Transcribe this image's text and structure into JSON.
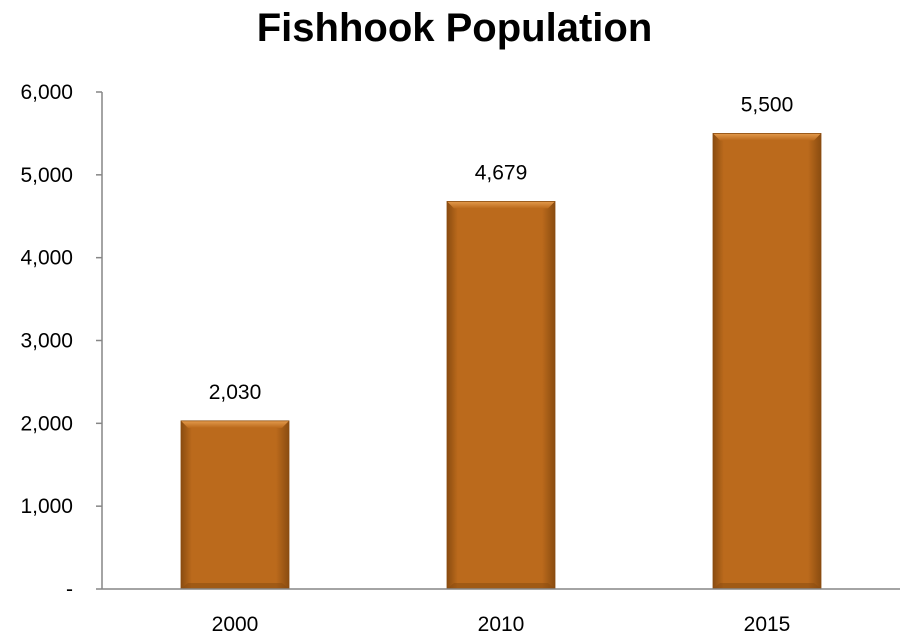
{
  "chart_data": {
    "type": "bar",
    "title": "Fishhook Population",
    "categories": [
      "2000",
      "2010",
      "2015"
    ],
    "values": [
      2030,
      4679,
      5500
    ],
    "data_labels": [
      "2,030",
      "4,679",
      "5,500"
    ],
    "y_tick_labels": [
      "-",
      "1,000",
      "2,000",
      "3,000",
      "4,000",
      "5,000",
      "6,000"
    ],
    "y_ticks": [
      0,
      1000,
      2000,
      3000,
      4000,
      5000,
      6000
    ],
    "ylim": [
      0,
      6000
    ],
    "xlabel": "",
    "ylabel": "",
    "grid": false,
    "legend": "none",
    "bar_color": "#BB6A1C",
    "bar_highlight": "#E39A4C",
    "bar_shadow": "#8A4C10",
    "axis_color": "#868686"
  }
}
